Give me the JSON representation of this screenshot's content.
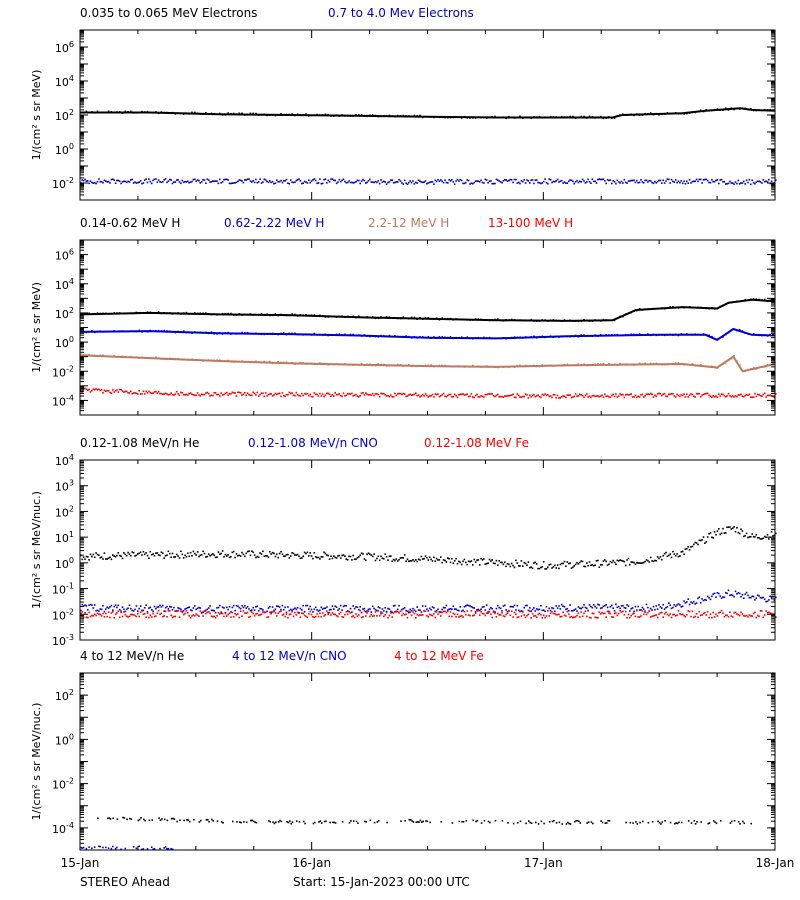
{
  "chart_data": {
    "type": "scatter",
    "x_ticks": [
      "15-Jan",
      "16-Jan",
      "17-Jan",
      "18-Jan"
    ],
    "x_range_days": [
      0,
      3
    ],
    "footer_left": "STEREO Ahead",
    "footer_center": "Start: 15-Jan-2023 00:00 UTC",
    "panels": [
      {
        "ylabel": "1/(cm² s sr MeV)",
        "log_range": [
          -3,
          7
        ],
        "tick_labels": [
          {
            "base": "10",
            "exp": "-2",
            "p": -2
          },
          {
            "base": "10",
            "exp": "0",
            "p": 0
          },
          {
            "base": "10",
            "exp": "2",
            "p": 2
          },
          {
            "base": "10",
            "exp": "4",
            "p": 4
          },
          {
            "base": "10",
            "exp": "6",
            "p": 6
          }
        ],
        "series": [
          {
            "name": "0.035 to 0.065 MeV Electrons",
            "color": "#000000",
            "style": "line",
            "points": [
              [
                0.0,
                2.15
              ],
              [
                0.3,
                2.15
              ],
              [
                0.6,
                2.05
              ],
              [
                0.9,
                2.0
              ],
              [
                1.2,
                1.95
              ],
              [
                1.5,
                1.9
              ],
              [
                1.8,
                1.85
              ],
              [
                2.1,
                1.85
              ],
              [
                2.3,
                1.85
              ],
              [
                2.34,
                2.0
              ],
              [
                2.6,
                2.1
              ],
              [
                2.7,
                2.25
              ],
              [
                2.85,
                2.4
              ],
              [
                2.9,
                2.3
              ],
              [
                3.0,
                2.25
              ]
            ]
          },
          {
            "name": "0.7 to 4.0 Mev Electrons",
            "color": "#0000cc",
            "style": "scatter",
            "points": [
              [
                0.0,
                -1.9
              ],
              [
                0.5,
                -1.9
              ],
              [
                1.0,
                -1.9
              ],
              [
                1.5,
                -1.95
              ],
              [
                2.0,
                -1.9
              ],
              [
                2.5,
                -1.9
              ],
              [
                3.0,
                -1.95
              ]
            ]
          }
        ]
      },
      {
        "ylabel": "1/(cm² s sr MeV)",
        "log_range": [
          -5,
          7
        ],
        "tick_labels": [
          {
            "base": "10",
            "exp": "-4",
            "p": -4
          },
          {
            "base": "10",
            "exp": "-2",
            "p": -2
          },
          {
            "base": "10",
            "exp": "0",
            "p": 0
          },
          {
            "base": "10",
            "exp": "2",
            "p": 2
          },
          {
            "base": "10",
            "exp": "4",
            "p": 4
          },
          {
            "base": "10",
            "exp": "6",
            "p": 6
          }
        ],
        "series": [
          {
            "name": "0.14-0.62 MeV H",
            "color": "#000000",
            "style": "line",
            "points": [
              [
                0.0,
                1.9
              ],
              [
                0.3,
                2.0
              ],
              [
                0.6,
                1.9
              ],
              [
                0.9,
                1.85
              ],
              [
                1.2,
                1.7
              ],
              [
                1.5,
                1.6
              ],
              [
                1.8,
                1.5
              ],
              [
                2.1,
                1.45
              ],
              [
                2.3,
                1.5
              ],
              [
                2.4,
                2.2
              ],
              [
                2.6,
                2.4
              ],
              [
                2.75,
                2.3
              ],
              [
                2.8,
                2.7
              ],
              [
                2.9,
                2.9
              ],
              [
                3.0,
                2.8
              ]
            ]
          },
          {
            "name": "0.62-2.22 MeV H",
            "color": "#0000cc",
            "style": "line",
            "points": [
              [
                0.0,
                0.7
              ],
              [
                0.3,
                0.75
              ],
              [
                0.6,
                0.6
              ],
              [
                0.9,
                0.55
              ],
              [
                1.2,
                0.45
              ],
              [
                1.5,
                0.3
              ],
              [
                1.8,
                0.25
              ],
              [
                2.1,
                0.4
              ],
              [
                2.3,
                0.45
              ],
              [
                2.5,
                0.5
              ],
              [
                2.7,
                0.5
              ],
              [
                2.75,
                0.15
              ],
              [
                2.82,
                0.9
              ],
              [
                2.9,
                0.5
              ],
              [
                3.0,
                0.45
              ]
            ]
          },
          {
            "name": "2.2-12 MeV H",
            "color": "#c07860",
            "style": "line",
            "points": [
              [
                0.0,
                -0.9
              ],
              [
                0.3,
                -1.1
              ],
              [
                0.6,
                -1.3
              ],
              [
                0.9,
                -1.45
              ],
              [
                1.2,
                -1.55
              ],
              [
                1.5,
                -1.65
              ],
              [
                1.8,
                -1.7
              ],
              [
                2.1,
                -1.6
              ],
              [
                2.3,
                -1.55
              ],
              [
                2.6,
                -1.5
              ],
              [
                2.75,
                -1.75
              ],
              [
                2.82,
                -1.0
              ],
              [
                2.86,
                -2.0
              ],
              [
                3.0,
                -1.5
              ]
            ]
          },
          {
            "name": "13-100 MeV H",
            "color": "#ff0000",
            "style": "scatter",
            "points": [
              [
                0.0,
                -3.3
              ],
              [
                0.5,
                -3.55
              ],
              [
                1.0,
                -3.6
              ],
              [
                1.5,
                -3.65
              ],
              [
                2.0,
                -3.7
              ],
              [
                2.5,
                -3.65
              ],
              [
                3.0,
                -3.65
              ]
            ]
          }
        ]
      },
      {
        "ylabel": "1/(cm² s sr MeV/nuc.)",
        "log_range": [
          -3,
          4
        ],
        "tick_labels": [
          {
            "base": "10",
            "exp": "-3",
            "p": -3
          },
          {
            "base": "10",
            "exp": "-2",
            "p": -2
          },
          {
            "base": "10",
            "exp": "-1",
            "p": -1
          },
          {
            "base": "10",
            "exp": "0",
            "p": 0
          },
          {
            "base": "10",
            "exp": "1",
            "p": 1
          },
          {
            "base": "10",
            "exp": "2",
            "p": 2
          },
          {
            "base": "10",
            "exp": "3",
            "p": 3
          },
          {
            "base": "10",
            "exp": "4",
            "p": 4
          }
        ],
        "series": [
          {
            "name": "0.12-1.08 MeV/n He",
            "color": "#000000",
            "style": "scatter",
            "points": [
              [
                0.0,
                0.25
              ],
              [
                0.3,
                0.3
              ],
              [
                0.6,
                0.35
              ],
              [
                0.9,
                0.3
              ],
              [
                1.2,
                0.25
              ],
              [
                1.5,
                0.15
              ],
              [
                1.8,
                0.0
              ],
              [
                2.0,
                -0.1
              ],
              [
                2.2,
                -0.05
              ],
              [
                2.4,
                0.05
              ],
              [
                2.6,
                0.4
              ],
              [
                2.75,
                1.2
              ],
              [
                2.82,
                1.35
              ],
              [
                2.9,
                1.0
              ],
              [
                3.0,
                1.1
              ]
            ]
          },
          {
            "name": "0.12-1.08 MeV/n CNO",
            "color": "#0000cc",
            "style": "scatter",
            "points": [
              [
                0.0,
                -1.75
              ],
              [
                0.5,
                -1.8
              ],
              [
                1.0,
                -1.8
              ],
              [
                1.5,
                -1.8
              ],
              [
                2.0,
                -1.75
              ],
              [
                2.5,
                -1.75
              ],
              [
                2.8,
                -1.2
              ],
              [
                3.0,
                -1.45
              ]
            ]
          },
          {
            "name": "0.12-1.08 MeV Fe",
            "color": "#ff0000",
            "style": "scatter",
            "points": [
              [
                0.0,
                -2.0
              ],
              [
                1.0,
                -2.0
              ],
              [
                2.0,
                -2.0
              ],
              [
                3.0,
                -2.0
              ]
            ]
          }
        ]
      },
      {
        "ylabel": "1/(cm² s sr MeV/nuc.)",
        "log_range": [
          -5,
          3
        ],
        "tick_labels": [
          {
            "base": "10",
            "exp": "-4",
            "p": -4
          },
          {
            "base": "10",
            "exp": "-2",
            "p": -2
          },
          {
            "base": "10",
            "exp": "0",
            "p": 0
          },
          {
            "base": "10",
            "exp": "2",
            "p": 2
          }
        ],
        "series": [
          {
            "name": "4 to 12 MeV/n He",
            "color": "#000000",
            "style": "scatter",
            "points": [
              [
                0.05,
                -3.6
              ],
              [
                0.3,
                -3.6
              ],
              [
                0.6,
                -3.7
              ],
              [
                0.9,
                -3.75
              ],
              [
                1.4,
                -3.7
              ],
              [
                2.0,
                -3.75
              ],
              [
                2.6,
                -3.75
              ],
              [
                2.9,
                -3.75
              ]
            ]
          },
          {
            "name": "4 to 12 MeV/n CNO",
            "color": "#0000cc",
            "style": "scatter",
            "points": [
              [
                0.0,
                -4.9
              ],
              [
                0.4,
                -4.9
              ]
            ]
          },
          {
            "name": "4 to 12 MeV Fe",
            "color": "#ff0000",
            "style": "scatter",
            "points": []
          }
        ]
      }
    ]
  }
}
